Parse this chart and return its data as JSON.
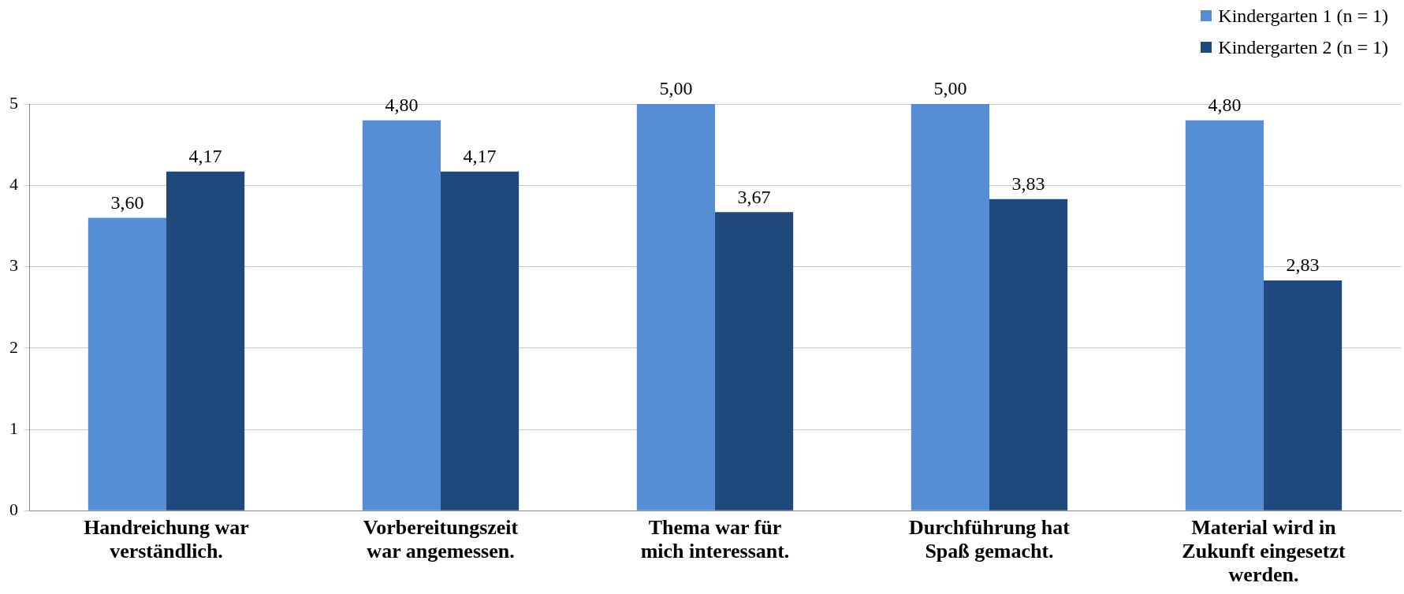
{
  "chart_data": {
    "type": "bar",
    "categories": [
      "Handreichung war\nverständlich.",
      "Vorbereitungszeit\nwar angemessen.",
      "Thema war für\nmich interessant.",
      "Durchführung hat\nSpaß gemacht.",
      "Material wird in\nZukunft eingesetzt\nwerden."
    ],
    "series": [
      {
        "name": "Kindergarten 1 (n = 1)",
        "color": "#558ed5",
        "values": [
          3.6,
          4.8,
          5,
          5,
          4.8
        ],
        "value_labels": [
          "3,60",
          "4,80",
          "5,00",
          "5,00",
          "4,80"
        ]
      },
      {
        "name": "Kindergarten 2 (n = 1)",
        "color": "#1f497d",
        "values": [
          4.17,
          4.17,
          3.67,
          3.83,
          2.83
        ],
        "value_labels": [
          "4,17",
          "4,17",
          "3,67",
          "3,83",
          "2,83"
        ]
      }
    ],
    "ylim": [
      0,
      5
    ],
    "yticks": [
      0,
      1,
      2,
      3,
      4,
      5
    ],
    "grid": "y",
    "legend": "top right"
  }
}
